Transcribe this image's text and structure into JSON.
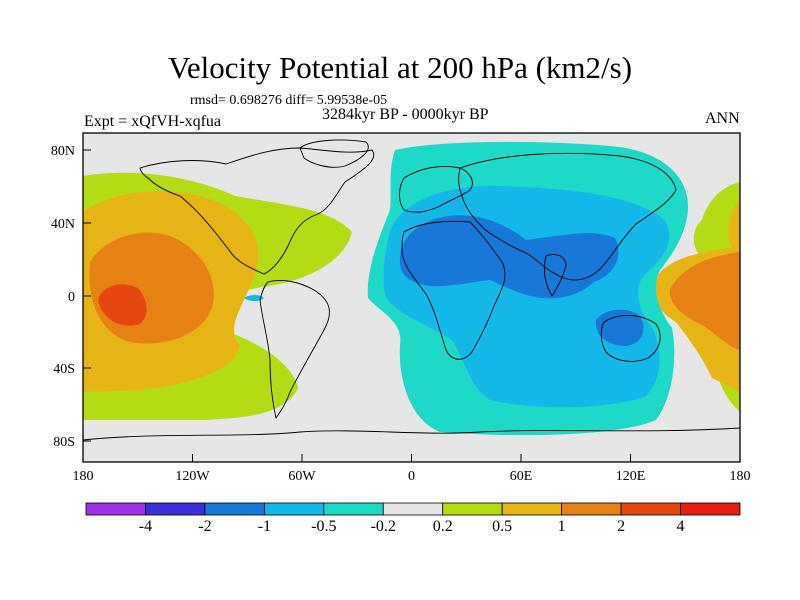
{
  "title": "Velocity Potential at 200 hPa (km2/s)",
  "stats": "rmsd= 0.698276 diff= 5.99538e-05",
  "period": "3284kyr BP - 0000kyr BP",
  "experiment": "Expt = xQfVH-xqfua",
  "season": "ANN",
  "lat_labels": [
    "80N",
    "40N",
    "0",
    "40S",
    "80S"
  ],
  "lon_labels": [
    "180",
    "120W",
    "60W",
    "0",
    "60E",
    "120E",
    "180"
  ],
  "colorbar": {
    "labels": [
      "-4",
      "-2",
      "-1",
      "-0.5",
      "-0.2",
      "0.2",
      "0.5",
      "1",
      "2",
      "4"
    ],
    "colors": [
      "#9d32e6",
      "#3a2fd9",
      "#1878d8",
      "#14b8e8",
      "#1ed8c8",
      "#e6e6e6",
      "#b4dc14",
      "#e6b414",
      "#e68214",
      "#e6460f",
      "#e61e0f"
    ]
  }
}
